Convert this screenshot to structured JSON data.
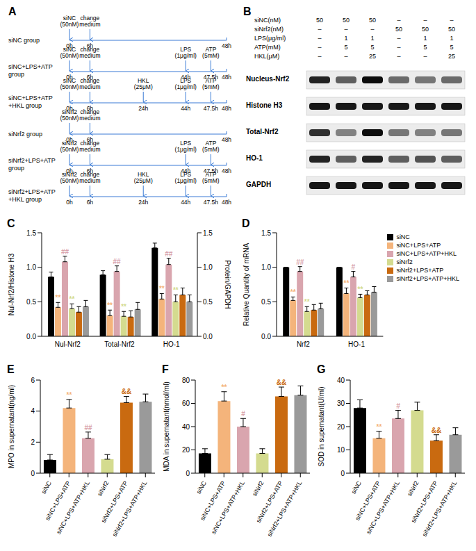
{
  "timeline": {
    "label": "A",
    "groups": [
      {
        "name": [
          "siNC group"
        ],
        "events": [
          {
            "time": "0h",
            "text": [
              "siNC",
              "(50nM)"
            ]
          },
          {
            "time": "6h",
            "text": [
              "change",
              "medium"
            ]
          },
          {
            "time": "48h"
          }
        ]
      },
      {
        "name": [
          "siNC+LPS+ATP",
          "group"
        ],
        "events": [
          {
            "time": "0h",
            "text": [
              "siNC",
              "(50nM)"
            ]
          },
          {
            "time": "6h",
            "text": [
              "change",
              "medium"
            ]
          },
          {
            "time": "44h",
            "text": [
              "LPS",
              "(1μg/ml)"
            ]
          },
          {
            "time": "47.5h",
            "text": [
              "ATP",
              "(5mM)"
            ]
          },
          {
            "time": "48h"
          }
        ]
      },
      {
        "name": [
          "siNC+LPS+ATP",
          "+HKL  group"
        ],
        "events": [
          {
            "time": "0h",
            "text": [
              "siNC",
              "(50nM)"
            ]
          },
          {
            "time": "6h",
            "text": [
              "change",
              "medium"
            ]
          },
          {
            "time": "24h",
            "text": [
              "HKL",
              "(25μM)"
            ]
          },
          {
            "time": "44h",
            "text": [
              "LPS",
              "(1μg/ml)"
            ]
          },
          {
            "time": "47.5h",
            "text": [
              "ATP",
              "(5mM)"
            ]
          },
          {
            "time": "48h"
          }
        ]
      },
      {
        "name": [
          "siNrf2 group"
        ],
        "events": [
          {
            "time": "0h",
            "text": [
              "siNrf2",
              "(50nM)"
            ]
          },
          {
            "time": "6h",
            "text": [
              "change",
              "medium"
            ]
          },
          {
            "time": "48h"
          }
        ]
      },
      {
        "name": [
          "siNrf2+LPS+ATP",
          "group"
        ],
        "events": [
          {
            "time": "0h",
            "text": [
              "siNrf2",
              "(50nM)"
            ]
          },
          {
            "time": "6h",
            "text": [
              "change",
              "medium"
            ]
          },
          {
            "time": "44h",
            "text": [
              "LPS",
              "(1μg/ml)"
            ]
          },
          {
            "time": "47.5h",
            "text": [
              "ATP",
              "(5mM)"
            ]
          },
          {
            "time": "48h"
          }
        ]
      },
      {
        "name": [
          "siNrf2+LPS+ATP",
          "+HKL group"
        ],
        "events": [
          {
            "time": "0h",
            "text": [
              "siNrf2",
              "(50nM)"
            ]
          },
          {
            "time": "6h",
            "text": [
              "change",
              "medium"
            ]
          },
          {
            "time": "24h",
            "text": [
              "HKL",
              "(25μM)"
            ]
          },
          {
            "time": "44h",
            "text": [
              "LPS",
              "(1μg/ml)"
            ]
          },
          {
            "time": "47.5h",
            "text": [
              "ATP",
              "(5mM)"
            ]
          },
          {
            "time": "48h"
          }
        ]
      }
    ]
  },
  "blot": {
    "label": "B",
    "conditions": [
      {
        "label": "siNC(nM)",
        "values": [
          "50",
          "50",
          "50",
          "–",
          "–",
          "–"
        ]
      },
      {
        "label": "siNrf2(nM)",
        "values": [
          "–",
          "–",
          "–",
          "50",
          "50",
          "50"
        ]
      },
      {
        "label": "LPS(μg/ml)",
        "values": [
          "–",
          "1",
          "1",
          "–",
          "1",
          "1"
        ]
      },
      {
        "label": "ATP(mM)",
        "values": [
          "–",
          "5",
          "5",
          "–",
          "5",
          "5"
        ]
      },
      {
        "label": "HKL(μM)",
        "values": [
          "–",
          "–",
          "25",
          "–",
          "–",
          "25"
        ]
      }
    ],
    "rows": [
      {
        "label": "Nucleus-Nrf2",
        "intensities": [
          0.85,
          0.6,
          0.95,
          0.55,
          0.5,
          0.55
        ]
      },
      {
        "label": "Histone H3",
        "intensities": [
          0.9,
          0.9,
          0.9,
          0.9,
          0.9,
          0.9
        ]
      },
      {
        "label": "Total-Nrf2",
        "intensities": [
          0.8,
          0.45,
          0.95,
          0.5,
          0.45,
          0.5
        ]
      },
      {
        "label": "HO-1",
        "intensities": [
          0.85,
          0.6,
          0.85,
          0.6,
          0.65,
          0.6
        ]
      },
      {
        "label": "GAPDH",
        "intensities": [
          0.9,
          0.9,
          0.9,
          0.9,
          0.9,
          0.9
        ]
      }
    ]
  },
  "chart_data": [
    {
      "type": "bar",
      "label": "C",
      "categories": [
        "Nul-Nrf2",
        "Total-Nrf2",
        "HO-1"
      ],
      "y_label": "Nul-Nrf2/Histone H3",
      "y2_label": "Protein/GAPDH",
      "ylim": [
        0,
        1.5
      ],
      "yticks": [
        {
          "value": 0,
          "label": "0.0"
        },
        {
          "value": 0.5,
          "label": "0.5"
        },
        {
          "value": 1,
          "label": "1.0"
        },
        {
          "value": 1.5,
          "label": "1.5"
        }
      ],
      "y2lim": [
        0,
        1.5
      ],
      "y2ticks": [
        {
          "value": 0,
          "label": "0.0"
        },
        {
          "value": 0.5,
          "label": "0.5"
        },
        {
          "value": 1,
          "label": "1.0"
        },
        {
          "value": 1.5,
          "label": "1.5"
        }
      ],
      "grid": false,
      "series": [
        {
          "name": "siNC",
          "color": "#000000",
          "values": [
            0.86,
            0.89,
            1.28
          ],
          "errors": [
            0.07,
            0.06,
            0.07
          ],
          "annotations": [
            null,
            null,
            null
          ]
        },
        {
          "name": "siNC+LPS+ATP",
          "color": "#F4B47B",
          "values": [
            0.42,
            0.3,
            0.54
          ],
          "errors": [
            0.07,
            0.08,
            0.08
          ],
          "annotations": [
            "**",
            "**",
            "**"
          ]
        },
        {
          "name": "siNC+LPS+ATP+HKL",
          "color": "#D9A5AE",
          "values": [
            1.08,
            0.94,
            1.04
          ],
          "errors": [
            0.08,
            0.08,
            0.09
          ],
          "annotations": [
            "##",
            "##",
            "##"
          ]
        },
        {
          "name": "siNrf2",
          "color": "#D4DB8F",
          "values": [
            0.4,
            0.29,
            0.5
          ],
          "errors": [
            0.07,
            0.07,
            0.1
          ],
          "annotations": [
            "**",
            "**",
            "**"
          ]
        },
        {
          "name": "siNrf2+LPS+ATP",
          "color": "#C96A10",
          "values": [
            0.35,
            0.28,
            0.6
          ],
          "errors": [
            0.08,
            0.09,
            0.1
          ],
          "annotations": [
            null,
            null,
            null
          ]
        },
        {
          "name": "siNrf2+LPS+ATP+HKL",
          "color": "#9A9A9A",
          "values": [
            0.43,
            0.39,
            0.5
          ],
          "errors": [
            0.09,
            0.1,
            0.1
          ],
          "annotations": [
            null,
            null,
            null
          ]
        }
      ]
    },
    {
      "type": "bar",
      "label": "D",
      "categories": [
        "Nrf2",
        "HO-1"
      ],
      "y_label": "Relative Quantity of mRNA",
      "ylim": [
        0,
        1.5
      ],
      "yticks": [
        {
          "value": 0,
          "label": "0.0"
        },
        {
          "value": 0.5,
          "label": "0.5"
        },
        {
          "value": 1,
          "label": "1.0"
        },
        {
          "value": 1.5,
          "label": "1.5"
        }
      ],
      "grid": false,
      "legend": "top-right",
      "series": [
        {
          "name": "siNC",
          "color": "#000000",
          "values": [
            1,
            1
          ],
          "errors": [
            0,
            0
          ],
          "annotations": [
            null,
            null
          ]
        },
        {
          "name": "siNC+LPS+ATP",
          "color": "#F4B47B",
          "values": [
            0.52,
            0.62
          ],
          "errors": [
            0.05,
            0.08
          ],
          "annotations": [
            "**",
            "**"
          ]
        },
        {
          "name": "siNC+LPS+ATP+HKL",
          "color": "#D9A5AE",
          "values": [
            0.94,
            0.86
          ],
          "errors": [
            0.07,
            0.08
          ],
          "annotations": [
            "##",
            "#"
          ]
        },
        {
          "name": "siNrf2",
          "color": "#D4DB8F",
          "values": [
            0.36,
            0.56
          ],
          "errors": [
            0.07,
            0.05
          ],
          "annotations": [
            "**",
            "**"
          ]
        },
        {
          "name": "siNrf2+LPS+ATP",
          "color": "#C96A10",
          "values": [
            0.38,
            0.6
          ],
          "errors": [
            0.08,
            0.06
          ],
          "annotations": [
            null,
            null
          ]
        },
        {
          "name": "siNrf2+LPS+ATP+HKL",
          "color": "#9A9A9A",
          "values": [
            0.4,
            0.64
          ],
          "errors": [
            0.08,
            0.08
          ],
          "annotations": [
            null,
            null
          ]
        }
      ]
    },
    {
      "type": "bar",
      "label": "E",
      "categories": [
        "siNC",
        "siNC+LPS+ATP",
        "siNC+LPS+ATP+HKL",
        "siNrf2",
        "siNrf2+LPS+ATP",
        "siNrf2+LPS+ATP+HKL"
      ],
      "y_label": "MPO in supernatant(ng/ml)",
      "ylim": [
        0,
        6
      ],
      "yticks": [
        0,
        2,
        4,
        6
      ],
      "grid": false,
      "values": [
        0.85,
        4.2,
        2.25,
        0.9,
        4.55,
        4.6
      ],
      "errors": [
        0.35,
        0.55,
        0.4,
        0.3,
        0.4,
        0.5
      ],
      "annotations": [
        null,
        "**",
        "##",
        null,
        "&&",
        null
      ],
      "colors": [
        "#000000",
        "#F4B47B",
        "#D9A5AE",
        "#D4DB8F",
        "#C96A10",
        "#9A9A9A"
      ]
    },
    {
      "type": "bar",
      "label": "F",
      "categories": [
        "siNC",
        "siNC+LPS+ATP",
        "siNC+LPS+ATP+HKL",
        "siNrf2",
        "siNrf2+LPS+ATP",
        "siNrf2+LPS+ATP+HKL"
      ],
      "y_label": "MDA in supernatant(nmol/ml)",
      "ylim": [
        0,
        80
      ],
      "yticks": [
        0,
        20,
        40,
        60,
        80
      ],
      "grid": false,
      "values": [
        17,
        62,
        40,
        17,
        66,
        67
      ],
      "errors": [
        4,
        8,
        7,
        4,
        8,
        8
      ],
      "annotations": [
        null,
        "**",
        "#",
        null,
        "&&",
        null
      ],
      "colors": [
        "#000000",
        "#F4B47B",
        "#D9A5AE",
        "#D4DB8F",
        "#C96A10",
        "#9A9A9A"
      ]
    },
    {
      "type": "bar",
      "label": "G",
      "categories": [
        "siNC",
        "siNC+LPS+ATP",
        "siNC+LPS+ATP+HKL",
        "siNrf2",
        "siNrf2+LPS+ATP",
        "siNrf2+LPS+ATP+HKL"
      ],
      "y_label": "SOD in supernatant(U/ml)",
      "ylim": [
        0,
        40
      ],
      "yticks": [
        0,
        10,
        20,
        30,
        40
      ],
      "grid": false,
      "values": [
        28,
        15,
        23.5,
        27,
        14,
        16.5
      ],
      "errors": [
        3.5,
        3,
        3.5,
        3.5,
        2.5,
        3
      ],
      "annotations": [
        null,
        "**",
        "#",
        null,
        "&&",
        null
      ],
      "colors": [
        "#000000",
        "#F4B47B",
        "#D9A5AE",
        "#D4DB8F",
        "#C96A10",
        "#9A9A9A"
      ]
    }
  ]
}
